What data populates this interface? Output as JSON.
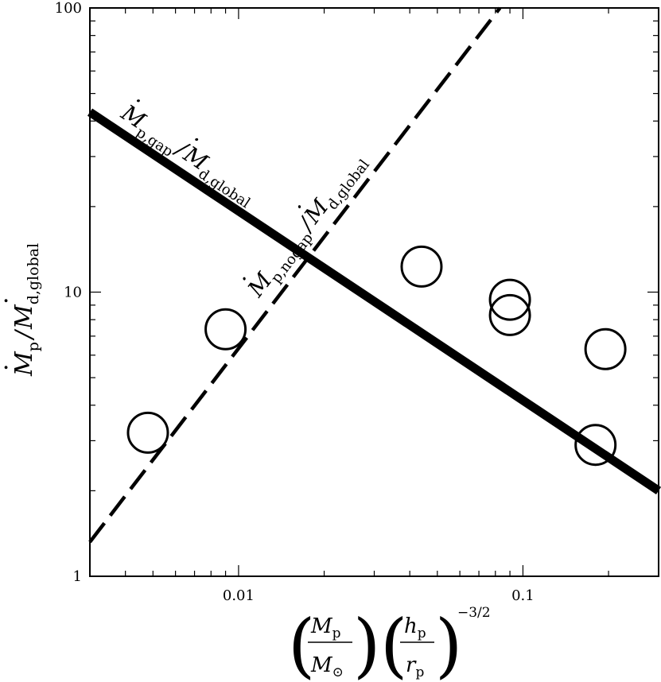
{
  "chart_data": {
    "type": "scatter",
    "title": "",
    "xscale": "log",
    "yscale": "log",
    "xlim": [
      0.003,
      0.3
    ],
    "ylim": [
      1,
      100
    ],
    "xticks": [
      {
        "value": 0.01,
        "label": "0.01"
      },
      {
        "value": 0.1,
        "label": "0.1"
      }
    ],
    "yticks": [
      {
        "value": 1,
        "label": "1"
      },
      {
        "value": 10,
        "label": "10"
      },
      {
        "value": 100,
        "label": "100"
      }
    ],
    "xlabel": {
      "left_num": "M",
      "left_num_sub": "p",
      "left_den": "M",
      "left_den_sub": "⊙",
      "right_num": "h",
      "right_num_sub": "p",
      "right_den": "r",
      "right_den_sub": "p",
      "exponent": "−3/2"
    },
    "ylabel": {
      "num": "M",
      "num_sub": "p",
      "slash": "/",
      "den": "M",
      "den_sub": "d,global",
      "dot": "·"
    },
    "points": [
      {
        "x": 0.0048,
        "y": 3.2
      },
      {
        "x": 0.009,
        "y": 7.4
      },
      {
        "x": 0.044,
        "y": 12.3
      },
      {
        "x": 0.09,
        "y": 9.4
      },
      {
        "x": 0.09,
        "y": 8.3
      },
      {
        "x": 0.18,
        "y": 2.9
      },
      {
        "x": 0.195,
        "y": 6.3
      }
    ],
    "lines": [
      {
        "style": "solid",
        "x": [
          0.003,
          0.3
        ],
        "y": [
          43,
          2.0
        ],
        "label": {
          "var": "M",
          "sub": "p,gap",
          "slash": "/",
          "var2": "M",
          "sub2": "d,global",
          "dot": "·"
        }
      },
      {
        "style": "dashed",
        "x": [
          0.003,
          0.083
        ],
        "y": [
          1.32,
          100
        ],
        "label": {
          "var": "M",
          "sub": "p,nogap",
          "slash": "/",
          "var2": "M",
          "sub2": "d,global",
          "dot": "·"
        }
      }
    ]
  }
}
